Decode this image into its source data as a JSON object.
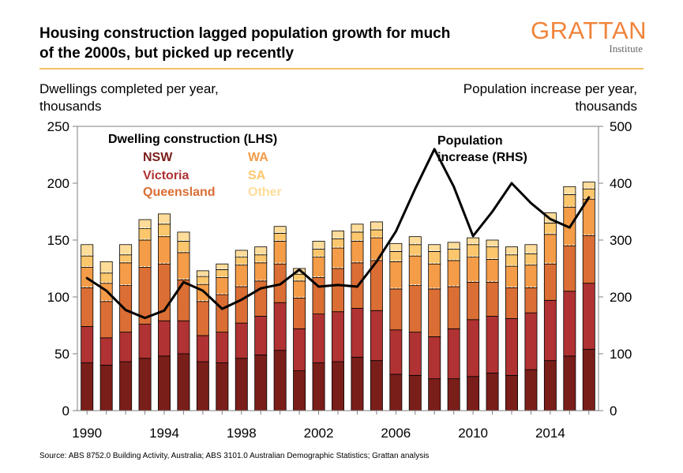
{
  "header": {
    "title_line1": "Housing construction lagged population growth for much",
    "title_line2": "of the 2000s, but picked up recently",
    "logo_main": "GRATTAN",
    "logo_sub": "Institute"
  },
  "footer": {
    "source": "Source: ABS 8752.0 Building Activity, Australia; ABS 3101.0 Australian Demographic Statistics; Grattan analysis"
  },
  "colors": {
    "NSW": "#7a1e1a",
    "Victoria": "#b03232",
    "Queensland": "#da6e34",
    "WA": "#f49c48",
    "SA": "#fbc66c",
    "Other": "#fedc9a",
    "population_line": "#000000",
    "logo": "#f0843c"
  },
  "chart_data": {
    "type": "bar",
    "stacked": true,
    "x": [
      1990,
      1991,
      1992,
      1993,
      1994,
      1995,
      1996,
      1997,
      1998,
      1999,
      2000,
      2001,
      2002,
      2003,
      2004,
      2005,
      2006,
      2007,
      2008,
      2009,
      2010,
      2011,
      2012,
      2013,
      2014,
      2015,
      2016
    ],
    "x_ticks": [
      "1990",
      "1994",
      "1998",
      "2002",
      "2006",
      "2010",
      "2014"
    ],
    "y_left_ticks": [
      "0",
      "50",
      "100",
      "150",
      "200",
      "250"
    ],
    "y_right_ticks": [
      "0",
      "100",
      "200",
      "300",
      "400",
      "500"
    ],
    "ylabel_left_line1": "Dwellings completed per year,",
    "ylabel_left_line2": "thousands",
    "ylabel_right_line1": "Population increase per year,",
    "ylabel_right_line2": "thousands",
    "ylim_left": [
      0,
      250
    ],
    "ylim_right": [
      0,
      500
    ],
    "grid": false,
    "legend_title_bars": "Dwelling construction (LHS)",
    "legend_title_line_1": "Population",
    "legend_title_line_2": "increase (RHS)",
    "series": [
      {
        "name": "NSW",
        "values": [
          42,
          40,
          43,
          46,
          48,
          50,
          43,
          42,
          46,
          49,
          53,
          35,
          42,
          43,
          47,
          44,
          32,
          31,
          28,
          28,
          30,
          33,
          31,
          36,
          44,
          48,
          54
        ]
      },
      {
        "name": "Victoria",
        "values": [
          32,
          24,
          26,
          30,
          31,
          29,
          23,
          27,
          31,
          34,
          42,
          37,
          43,
          44,
          43,
          44,
          39,
          38,
          37,
          44,
          50,
          50,
          50,
          50,
          53,
          57,
          58
        ]
      },
      {
        "name": "Queensland",
        "values": [
          34,
          32,
          41,
          50,
          50,
          36,
          30,
          33,
          32,
          31,
          34,
          27,
          32,
          38,
          40,
          44,
          36,
          41,
          42,
          37,
          33,
          30,
          27,
          22,
          32,
          40,
          42
        ]
      },
      {
        "name": "WA",
        "values": [
          18,
          16,
          20,
          24,
          24,
          24,
          15,
          15,
          19,
          16,
          20,
          15,
          18,
          18,
          19,
          20,
          24,
          26,
          22,
          23,
          22,
          20,
          19,
          20,
          26,
          34,
          32
        ]
      },
      {
        "name": "SA",
        "values": [
          10,
          9,
          7,
          10,
          11,
          10,
          7,
          7,
          7,
          7,
          7,
          6,
          7,
          8,
          8,
          7,
          9,
          10,
          11,
          10,
          11,
          11,
          10,
          10,
          10,
          11,
          9
        ]
      },
      {
        "name": "Other",
        "values": [
          10,
          10,
          9,
          8,
          9,
          8,
          5,
          5,
          6,
          7,
          6,
          5,
          7,
          7,
          7,
          7,
          7,
          7,
          6,
          6,
          6,
          6,
          7,
          8,
          9,
          7,
          6
        ]
      }
    ],
    "population_series": {
      "axis": "right",
      "x": [
        1990,
        1991,
        1992,
        1993,
        1994,
        1995,
        1996,
        1997,
        1998,
        1999,
        2000,
        2001,
        2002,
        2003,
        2004,
        2005,
        2006,
        2007,
        2008,
        2009,
        2010,
        2011,
        2012,
        2013,
        2014,
        2015,
        2016
      ],
      "values": [
        233,
        211,
        177,
        163,
        176,
        226,
        211,
        179,
        195,
        215,
        222,
        248,
        218,
        221,
        218,
        262,
        315,
        390,
        460,
        394,
        307,
        350,
        400,
        365,
        337,
        322,
        375
      ]
    }
  }
}
